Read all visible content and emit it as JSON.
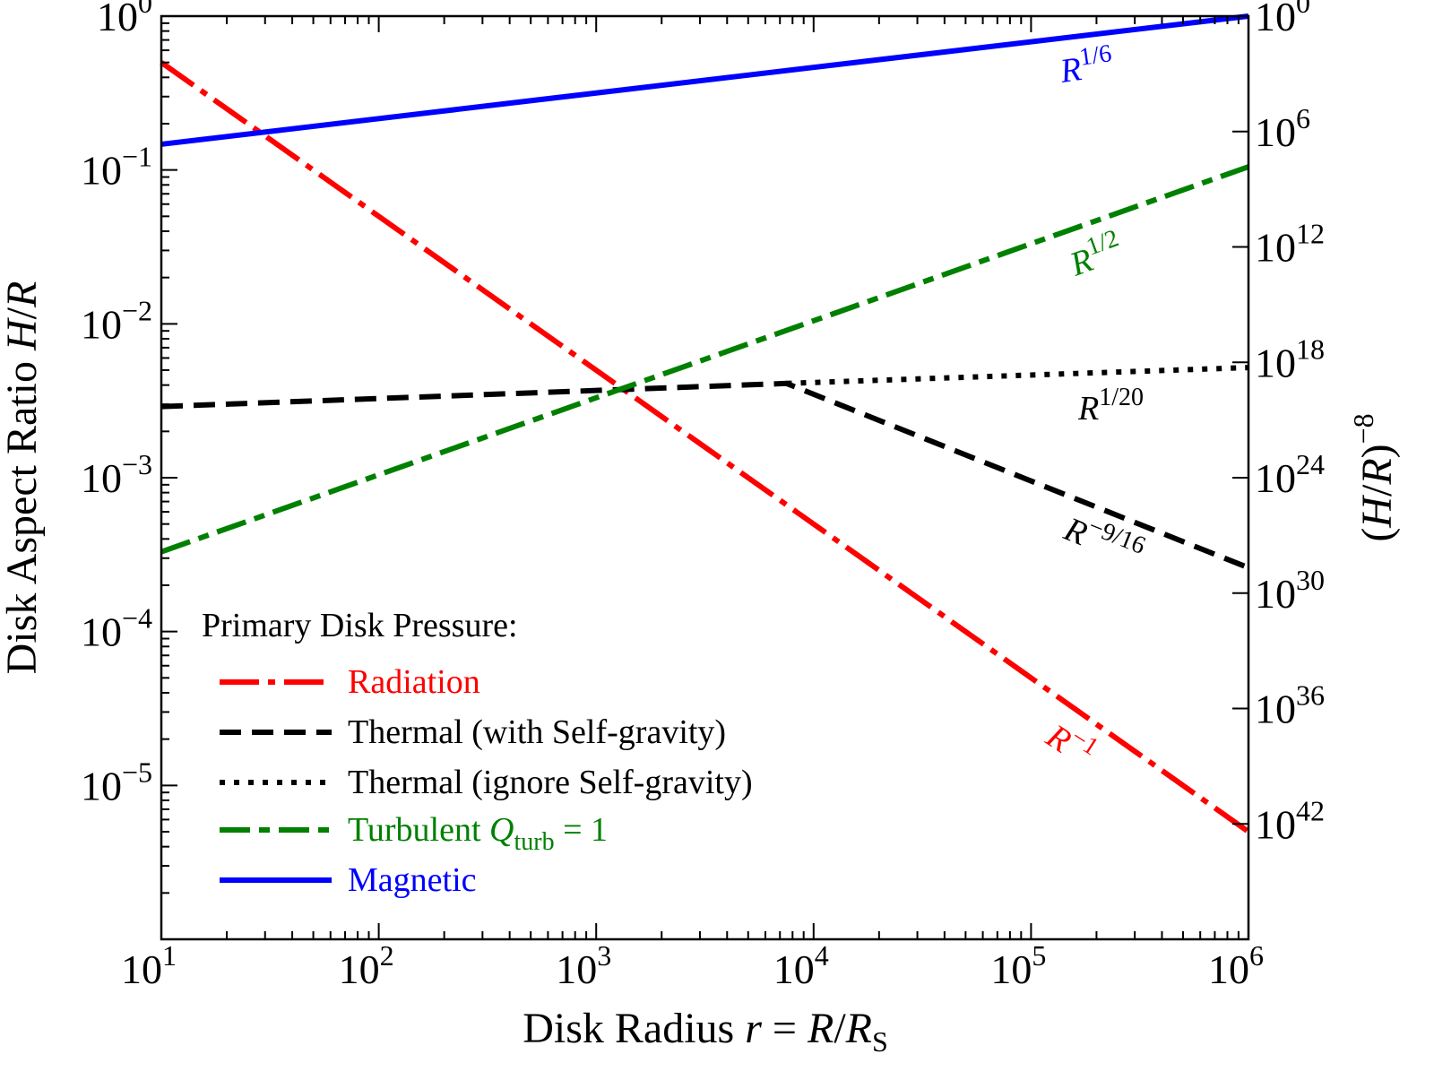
{
  "chart_data": {
    "type": "line",
    "x_scale": "log",
    "y_scale": "log",
    "xlim": [
      10,
      1000000
    ],
    "ylim": [
      1e-06,
      1
    ],
    "xlabel": {
      "text": "Disk Radius ",
      "var": "r",
      "eq": " = ",
      "rhs": "R",
      "slash": "/",
      "rhs2": "R",
      "sub": "S"
    },
    "ylabel": {
      "text": "Disk Aspect Ratio ",
      "var": "H",
      "slash": "/",
      "var2": "R"
    },
    "y2label": {
      "open": "(",
      "var": "H",
      "slash": "/",
      "var2": "R",
      "close": ")",
      "exp": "−8"
    },
    "x_ticks": [
      {
        "base": "10",
        "exp": "1",
        "value": 10
      },
      {
        "base": "10",
        "exp": "2",
        "value": 100
      },
      {
        "base": "10",
        "exp": "3",
        "value": 1000
      },
      {
        "base": "10",
        "exp": "4",
        "value": 10000
      },
      {
        "base": "10",
        "exp": "5",
        "value": 100000
      },
      {
        "base": "10",
        "exp": "6",
        "value": 1000000
      }
    ],
    "y_ticks": [
      {
        "base": "10",
        "exp": "0",
        "value": 1
      },
      {
        "base": "10",
        "exp": "−1",
        "value": 0.1
      },
      {
        "base": "10",
        "exp": "−2",
        "value": 0.01
      },
      {
        "base": "10",
        "exp": "−3",
        "value": 0.001
      },
      {
        "base": "10",
        "exp": "−4",
        "value": 0.0001
      },
      {
        "base": "10",
        "exp": "−5",
        "value": 1e-05
      }
    ],
    "y2_ticks": [
      {
        "base": "10",
        "exp": "0",
        "value": 1
      },
      {
        "base": "10",
        "exp": "6",
        "value": 1000000.0
      },
      {
        "base": "10",
        "exp": "12",
        "value": 1000000000000.0
      },
      {
        "base": "10",
        "exp": "18",
        "value": 1e+18
      },
      {
        "base": "10",
        "exp": "24",
        "value": 1e+24
      },
      {
        "base": "10",
        "exp": "30",
        "value": 1e+30
      },
      {
        "base": "10",
        "exp": "36",
        "value": 1e+36
      },
      {
        "base": "10",
        "exp": "42",
        "value": 1e+42
      }
    ],
    "grid": false,
    "legend": {
      "title": "Primary Disk Pressure:",
      "placement": "bottom-left",
      "entries": [
        {
          "series": "radiation",
          "label": "Radiation"
        },
        {
          "series": "thermal_sg",
          "label": "Thermal (with Self-gravity)"
        },
        {
          "series": "thermal_nosg",
          "label": "Thermal (ignore Self-gravity)"
        },
        {
          "series": "turbulent",
          "label": "Turbulent ",
          "var": "Q",
          "sub": "turb",
          "tail": " = 1"
        },
        {
          "series": "magnetic",
          "label": "Magnetic"
        }
      ]
    },
    "series": [
      {
        "id": "radiation",
        "name": "Radiation",
        "color": "#ff0000",
        "style": "dash-dot",
        "x": [
          10,
          1000000
        ],
        "y": [
          0.5,
          5e-06
        ],
        "annotation": {
          "base": "R",
          "exp": "−1"
        }
      },
      {
        "id": "thermal_sg",
        "name": "Thermal (with Self-gravity)",
        "color": "#000000",
        "style": "dashed",
        "x": [
          10,
          7500,
          1000000
        ],
        "y": [
          0.0029,
          0.0041,
          0.00026
        ],
        "annotation": {
          "base": "R",
          "exp": "−9/16"
        }
      },
      {
        "id": "thermal_nosg",
        "name": "Thermal (ignore Self-gravity)",
        "color": "#000000",
        "style": "dotted",
        "x": [
          7500,
          1000000
        ],
        "y": [
          0.0041,
          0.0052
        ],
        "annotation": {
          "base": "R",
          "exp": "1/20"
        }
      },
      {
        "id": "turbulent",
        "name": "Turbulent Q_turb = 1",
        "color": "#008000",
        "style": "dash-dot-short",
        "x": [
          10,
          1000000
        ],
        "y": [
          0.00033,
          0.105
        ],
        "annotation": {
          "base": "R",
          "exp": "1/2"
        }
      },
      {
        "id": "magnetic",
        "name": "Magnetic",
        "color": "#0000ff",
        "style": "solid",
        "x": [
          10,
          1000000
        ],
        "y": [
          0.147,
          1.0
        ],
        "annotation": {
          "base": "R",
          "exp": "1/6"
        }
      }
    ]
  }
}
